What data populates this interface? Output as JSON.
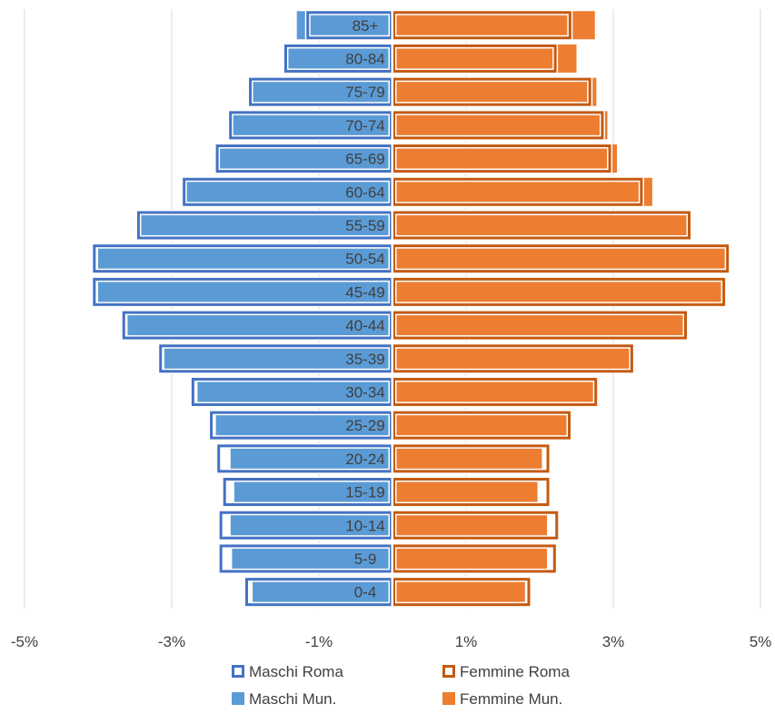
{
  "chart_data": {
    "type": "bar",
    "orientation": "horizontal",
    "layout": "population-pyramid",
    "categories": [
      "0-4",
      "5-9",
      "10-14",
      "15-19",
      "20-24",
      "25-29",
      "30-34",
      "35-39",
      "40-44",
      "45-49",
      "50-54",
      "55-59",
      "60-64",
      "65-69",
      "70-74",
      "75-79",
      "80-84",
      "85+"
    ],
    "xlim": [
      -5,
      5
    ],
    "x_ticks": [
      -5,
      -3,
      -1,
      1,
      3,
      5
    ],
    "x_tick_labels": [
      "-5%",
      "-3%",
      "-1%",
      "1%",
      "3%",
      "5%"
    ],
    "grid": "vertical",
    "legend_position": "bottom",
    "series": [
      {
        "name": "Maschi Mun.",
        "style": "filled",
        "color": "#5b9bd5",
        "values": [
          -1.9,
          -2.18,
          -2.2,
          -2.15,
          -2.2,
          -2.4,
          -2.65,
          -3.1,
          -3.6,
          -4.0,
          -4.0,
          -3.45,
          -2.82,
          -2.38,
          -2.2,
          -1.9,
          -1.43,
          -1.3
        ]
      },
      {
        "name": "Maschi Roma",
        "style": "outline",
        "color": "#4472c4",
        "values": [
          -2.0,
          -2.35,
          -2.35,
          -2.3,
          -2.38,
          -2.48,
          -2.73,
          -3.17,
          -3.67,
          -4.07,
          -4.07,
          -3.47,
          -2.85,
          -2.4,
          -2.22,
          -1.95,
          -1.47,
          -1.17
        ]
      },
      {
        "name": "Femmine Mun.",
        "style": "filled",
        "color": "#ed7d31",
        "values": [
          1.8,
          2.1,
          2.1,
          1.97,
          2.03,
          2.38,
          2.78,
          3.27,
          4.0,
          4.47,
          4.52,
          4.05,
          3.53,
          3.05,
          2.92,
          2.77,
          2.5,
          2.75
        ]
      },
      {
        "name": "Femmine Roma",
        "style": "outline",
        "color": "#c55a11",
        "values": [
          1.87,
          2.22,
          2.25,
          2.13,
          2.13,
          2.42,
          2.78,
          3.27,
          4.0,
          4.52,
          4.57,
          4.05,
          3.4,
          2.97,
          2.87,
          2.7,
          2.23,
          2.43
        ]
      }
    ],
    "legend": [
      "Maschi Roma",
      "Femmine Roma",
      "Maschi Mun.",
      "Femmine Mun."
    ]
  }
}
